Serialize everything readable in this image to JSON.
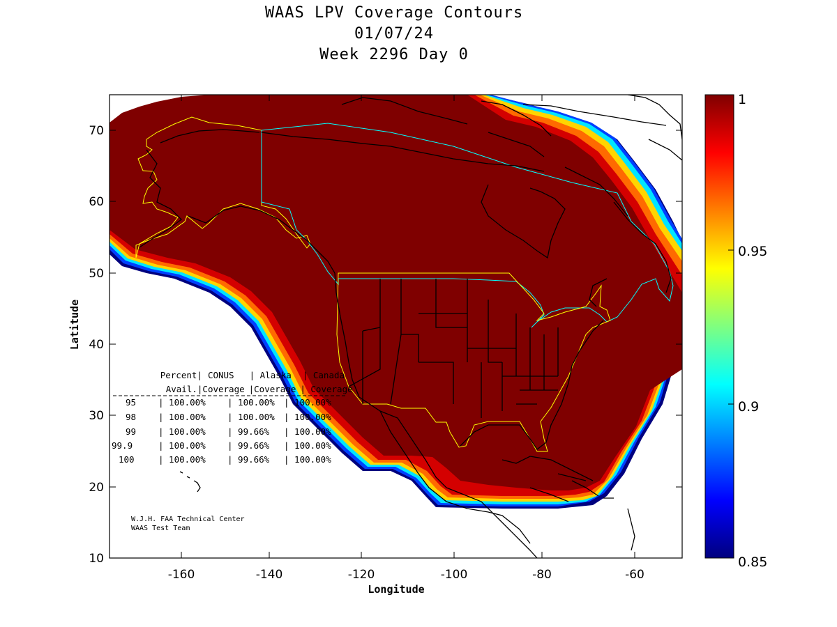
{
  "title": {
    "line1": "WAAS LPV Coverage Contours",
    "line2": "01/07/24",
    "line3": "Week 2296 Day 0"
  },
  "axes": {
    "xlabel": "Longitude",
    "ylabel": "Latitude",
    "xlim": [
      -175,
      -50
    ],
    "ylim": [
      10,
      75
    ],
    "x_ticks": [
      "-160",
      "-140",
      "-120",
      "-100",
      "-80",
      "-60"
    ],
    "y_ticks": [
      "10",
      "20",
      "30",
      "40",
      "50",
      "60",
      "70"
    ]
  },
  "colorbar": {
    "range": [
      0.85,
      1
    ],
    "labels": [
      "1",
      "0.95",
      "0.9",
      "0.85"
    ],
    "colormap": "jet"
  },
  "table": {
    "header1": [
      "Percent|",
      "CONUS",
      "| Alaska",
      "| Canada"
    ],
    "header2": [
      "Avail.|Coverage",
      "|Coverage",
      "| Coverage"
    ],
    "rows": [
      [
        "95",
        "| 100.00%",
        "| 100.00%",
        "| 100.00%"
      ],
      [
        "98",
        "| 100.00%",
        "| 100.00%",
        "| 100.00%"
      ],
      [
        "99",
        "| 100.00%",
        "| 99.66%",
        "| 100.00%"
      ],
      [
        "99.9",
        "| 100.00%",
        "| 99.66%",
        "| 100.00%"
      ],
      [
        "100",
        "| 100.00%",
        "| 99.66%",
        "| 100.00%"
      ]
    ]
  },
  "credit": {
    "line1": "W.J.H. FAA Technical Center",
    "line2": "WAAS Test Team"
  },
  "colors": {
    "full": "#7f0000",
    "red": "#d40000",
    "orange": "#ff6a00",
    "yellow": "#ffd500",
    "cyan": "#00e5ff",
    "blue": "#0040ff",
    "navy": "#00007f",
    "conus_outline": "#ffff00",
    "canada_outline": "#00ffff",
    "coast": "#000000"
  }
}
